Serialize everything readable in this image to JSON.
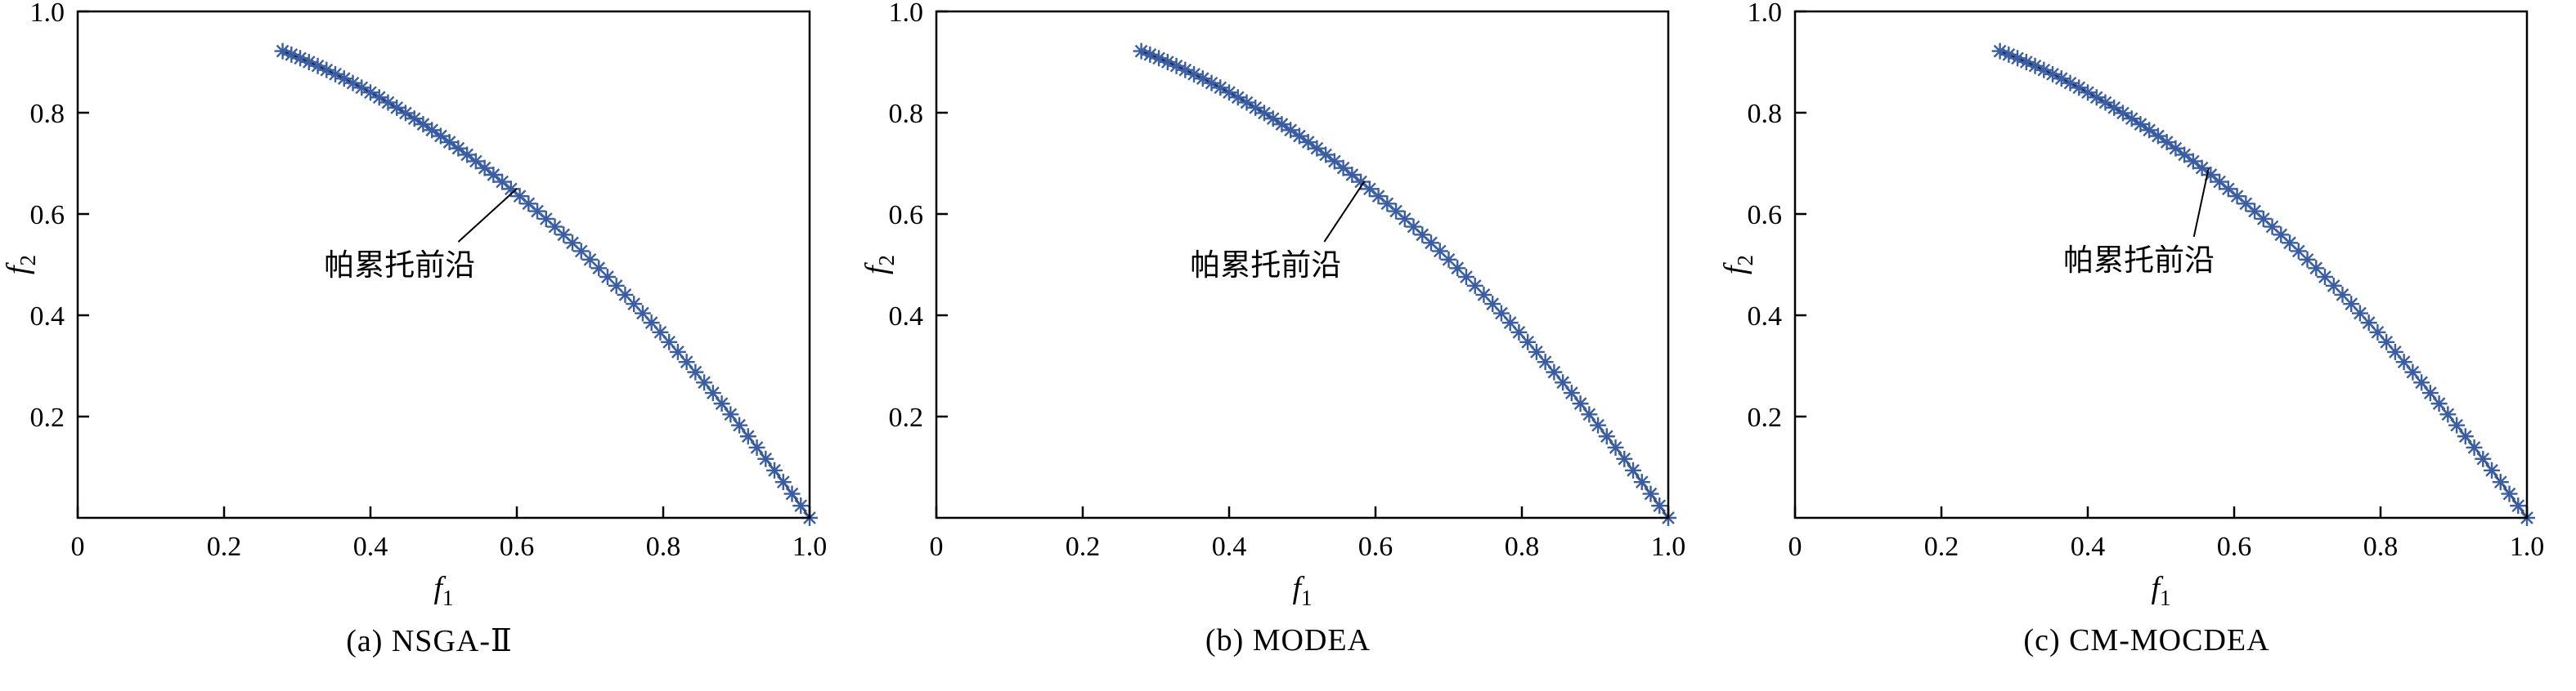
{
  "figure": {
    "background": "#ffffff",
    "marker_color": "#3a5ea6",
    "curve_color": "#1a1a1a",
    "axis_color": "#000000"
  },
  "chart_data": [
    {
      "type": "scatter",
      "caption": "(a) NSGA-Ⅱ",
      "xlabel": {
        "base": "f",
        "sub": "1"
      },
      "ylabel": {
        "base": "f",
        "sub": "2"
      },
      "xlim": [
        0,
        1.0
      ],
      "ylim": [
        0,
        1.0
      ],
      "grid": false,
      "xticks": {
        "values": [
          0,
          0.2,
          0.4,
          0.6,
          0.8,
          1.0
        ],
        "labels": [
          "0",
          "0.2",
          "0.4",
          "0.6",
          "0.8",
          "1.0"
        ]
      },
      "yticks": {
        "values": [
          0.2,
          0.4,
          0.6,
          0.8,
          1.0
        ],
        "labels": [
          "0.2",
          "0.4",
          "0.6",
          "0.8",
          "1.0"
        ]
      },
      "annotation": {
        "text": "帕累托前沿",
        "text_x": 0.44,
        "text_y": 0.5,
        "line": [
          0.52,
          0.545,
          0.6,
          0.65
        ]
      },
      "points": [
        [
          0.28,
          0.9216
        ],
        [
          0.292,
          0.9147
        ],
        [
          0.304,
          0.9076
        ],
        [
          0.316,
          0.9001
        ],
        [
          0.328,
          0.8924
        ],
        [
          0.34,
          0.8844
        ],
        [
          0.352,
          0.8761
        ],
        [
          0.364,
          0.8675
        ],
        [
          0.376,
          0.8586
        ],
        [
          0.388,
          0.8495
        ],
        [
          0.4,
          0.84
        ],
        [
          0.412,
          0.8303
        ],
        [
          0.424,
          0.8202
        ],
        [
          0.436,
          0.8099
        ],
        [
          0.448,
          0.7993
        ],
        [
          0.46,
          0.7884
        ],
        [
          0.472,
          0.7772
        ],
        [
          0.484,
          0.7657
        ],
        [
          0.496,
          0.754
        ],
        [
          0.508,
          0.7419
        ],
        [
          0.52,
          0.7296
        ],
        [
          0.532,
          0.717
        ],
        [
          0.544,
          0.7041
        ],
        [
          0.556,
          0.6909
        ],
        [
          0.568,
          0.6774
        ],
        [
          0.58,
          0.6636
        ],
        [
          0.592,
          0.6495
        ],
        [
          0.604,
          0.6352
        ],
        [
          0.616,
          0.6205
        ],
        [
          0.628,
          0.6056
        ],
        [
          0.64,
          0.5904
        ],
        [
          0.652,
          0.5749
        ],
        [
          0.664,
          0.5591
        ],
        [
          0.676,
          0.543
        ],
        [
          0.688,
          0.5267
        ],
        [
          0.7,
          0.51
        ],
        [
          0.712,
          0.4931
        ],
        [
          0.724,
          0.4758
        ],
        [
          0.736,
          0.4583
        ],
        [
          0.748,
          0.4405
        ],
        [
          0.76,
          0.4224
        ],
        [
          0.772,
          0.404
        ],
        [
          0.784,
          0.3853
        ],
        [
          0.796,
          0.3664
        ],
        [
          0.808,
          0.3471
        ],
        [
          0.82,
          0.3276
        ],
        [
          0.832,
          0.3078
        ],
        [
          0.844,
          0.2877
        ],
        [
          0.856,
          0.2673
        ],
        [
          0.868,
          0.2466
        ],
        [
          0.88,
          0.2256
        ],
        [
          0.892,
          0.2043
        ],
        [
          0.904,
          0.1828
        ],
        [
          0.916,
          0.1609
        ],
        [
          0.928,
          0.1388
        ],
        [
          0.94,
          0.1164
        ],
        [
          0.952,
          0.0937
        ],
        [
          0.964,
          0.0707
        ],
        [
          0.976,
          0.0474
        ],
        [
          0.988,
          0.0239
        ],
        [
          1.0,
          0.0
        ]
      ]
    },
    {
      "type": "scatter",
      "caption": "(b) MODEA",
      "xlabel": {
        "base": "f",
        "sub": "1"
      },
      "ylabel": {
        "base": "f",
        "sub": "2"
      },
      "xlim": [
        0,
        1.0
      ],
      "ylim": [
        0,
        1.0
      ],
      "grid": false,
      "xticks": {
        "values": [
          0,
          0.2,
          0.4,
          0.6,
          0.8,
          1.0
        ],
        "labels": [
          "0",
          "0.2",
          "0.4",
          "0.6",
          "0.8",
          "1.0"
        ]
      },
      "yticks": {
        "values": [
          0.2,
          0.4,
          0.6,
          0.8,
          1.0
        ],
        "labels": [
          "0.2",
          "0.4",
          "0.6",
          "0.8",
          "1.0"
        ]
      },
      "annotation": {
        "text": "帕累托前沿",
        "text_x": 0.45,
        "text_y": 0.5,
        "line": [
          0.53,
          0.545,
          0.585,
          0.665
        ]
      },
      "points": [
        [
          0.28,
          0.9216
        ],
        [
          0.292,
          0.9147
        ],
        [
          0.304,
          0.9076
        ],
        [
          0.316,
          0.9001
        ],
        [
          0.328,
          0.8924
        ],
        [
          0.34,
          0.8844
        ],
        [
          0.352,
          0.8761
        ],
        [
          0.364,
          0.8675
        ],
        [
          0.376,
          0.8586
        ],
        [
          0.388,
          0.8495
        ],
        [
          0.4,
          0.84
        ],
        [
          0.412,
          0.8303
        ],
        [
          0.424,
          0.8202
        ],
        [
          0.436,
          0.8099
        ],
        [
          0.448,
          0.7993
        ],
        [
          0.46,
          0.7884
        ],
        [
          0.472,
          0.7772
        ],
        [
          0.484,
          0.7657
        ],
        [
          0.496,
          0.754
        ],
        [
          0.508,
          0.7419
        ],
        [
          0.52,
          0.7296
        ],
        [
          0.532,
          0.717
        ],
        [
          0.544,
          0.7041
        ],
        [
          0.556,
          0.6909
        ],
        [
          0.568,
          0.6774
        ],
        [
          0.58,
          0.6636
        ],
        [
          0.592,
          0.6495
        ],
        [
          0.604,
          0.6352
        ],
        [
          0.616,
          0.6205
        ],
        [
          0.628,
          0.6056
        ],
        [
          0.64,
          0.5904
        ],
        [
          0.652,
          0.5749
        ],
        [
          0.664,
          0.5591
        ],
        [
          0.676,
          0.543
        ],
        [
          0.688,
          0.5267
        ],
        [
          0.7,
          0.51
        ],
        [
          0.712,
          0.4931
        ],
        [
          0.724,
          0.4758
        ],
        [
          0.736,
          0.4583
        ],
        [
          0.748,
          0.4405
        ],
        [
          0.76,
          0.4224
        ],
        [
          0.772,
          0.404
        ],
        [
          0.784,
          0.3853
        ],
        [
          0.796,
          0.3664
        ],
        [
          0.808,
          0.3471
        ],
        [
          0.82,
          0.3276
        ],
        [
          0.832,
          0.3078
        ],
        [
          0.844,
          0.2877
        ],
        [
          0.856,
          0.2673
        ],
        [
          0.868,
          0.2466
        ],
        [
          0.88,
          0.2256
        ],
        [
          0.892,
          0.2043
        ],
        [
          0.904,
          0.1828
        ],
        [
          0.916,
          0.1609
        ],
        [
          0.928,
          0.1388
        ],
        [
          0.94,
          0.1164
        ],
        [
          0.952,
          0.0937
        ],
        [
          0.964,
          0.0707
        ],
        [
          0.976,
          0.0474
        ],
        [
          0.988,
          0.0239
        ],
        [
          1.0,
          0.0
        ]
      ]
    },
    {
      "type": "scatter",
      "caption": "(c) CM-MOCDEA",
      "xlabel": {
        "base": "f",
        "sub": "1"
      },
      "ylabel": {
        "base": "f",
        "sub": "2"
      },
      "xlim": [
        0,
        1.0
      ],
      "ylim": [
        0,
        1.0
      ],
      "grid": false,
      "xticks": {
        "values": [
          0,
          0.2,
          0.4,
          0.6,
          0.8,
          1.0
        ],
        "labels": [
          "0",
          "0.2",
          "0.4",
          "0.6",
          "0.8",
          "1.0"
        ]
      },
      "yticks": {
        "values": [
          0.2,
          0.4,
          0.6,
          0.8,
          1.0
        ],
        "labels": [
          "0.2",
          "0.4",
          "0.6",
          "0.8",
          "1.0"
        ]
      },
      "annotation": {
        "text": "帕累托前沿",
        "text_x": 0.47,
        "text_y": 0.51,
        "line": [
          0.545,
          0.555,
          0.565,
          0.69
        ]
      },
      "points": [
        [
          0.28,
          0.9216
        ],
        [
          0.292,
          0.9147
        ],
        [
          0.304,
          0.9076
        ],
        [
          0.316,
          0.9001
        ],
        [
          0.328,
          0.8924
        ],
        [
          0.34,
          0.8844
        ],
        [
          0.352,
          0.8761
        ],
        [
          0.364,
          0.8675
        ],
        [
          0.376,
          0.8586
        ],
        [
          0.388,
          0.8495
        ],
        [
          0.4,
          0.84
        ],
        [
          0.412,
          0.8303
        ],
        [
          0.424,
          0.8202
        ],
        [
          0.436,
          0.8099
        ],
        [
          0.448,
          0.7993
        ],
        [
          0.46,
          0.7884
        ],
        [
          0.472,
          0.7772
        ],
        [
          0.484,
          0.7657
        ],
        [
          0.496,
          0.754
        ],
        [
          0.508,
          0.7419
        ],
        [
          0.52,
          0.7296
        ],
        [
          0.532,
          0.717
        ],
        [
          0.544,
          0.7041
        ],
        [
          0.556,
          0.6909
        ],
        [
          0.568,
          0.6774
        ],
        [
          0.58,
          0.6636
        ],
        [
          0.592,
          0.6495
        ],
        [
          0.604,
          0.6352
        ],
        [
          0.616,
          0.6205
        ],
        [
          0.628,
          0.6056
        ],
        [
          0.64,
          0.5904
        ],
        [
          0.652,
          0.5749
        ],
        [
          0.664,
          0.5591
        ],
        [
          0.676,
          0.543
        ],
        [
          0.688,
          0.5267
        ],
        [
          0.7,
          0.51
        ],
        [
          0.712,
          0.4931
        ],
        [
          0.724,
          0.4758
        ],
        [
          0.736,
          0.4583
        ],
        [
          0.748,
          0.4405
        ],
        [
          0.76,
          0.4224
        ],
        [
          0.772,
          0.404
        ],
        [
          0.784,
          0.3853
        ],
        [
          0.796,
          0.3664
        ],
        [
          0.808,
          0.3471
        ],
        [
          0.82,
          0.3276
        ],
        [
          0.832,
          0.3078
        ],
        [
          0.844,
          0.2877
        ],
        [
          0.856,
          0.2673
        ],
        [
          0.868,
          0.2466
        ],
        [
          0.88,
          0.2256
        ],
        [
          0.892,
          0.2043
        ],
        [
          0.904,
          0.1828
        ],
        [
          0.916,
          0.1609
        ],
        [
          0.928,
          0.1388
        ],
        [
          0.94,
          0.1164
        ],
        [
          0.952,
          0.0937
        ],
        [
          0.964,
          0.0707
        ],
        [
          0.976,
          0.0474
        ],
        [
          0.988,
          0.0239
        ],
        [
          1.0,
          0.0
        ]
      ]
    }
  ]
}
